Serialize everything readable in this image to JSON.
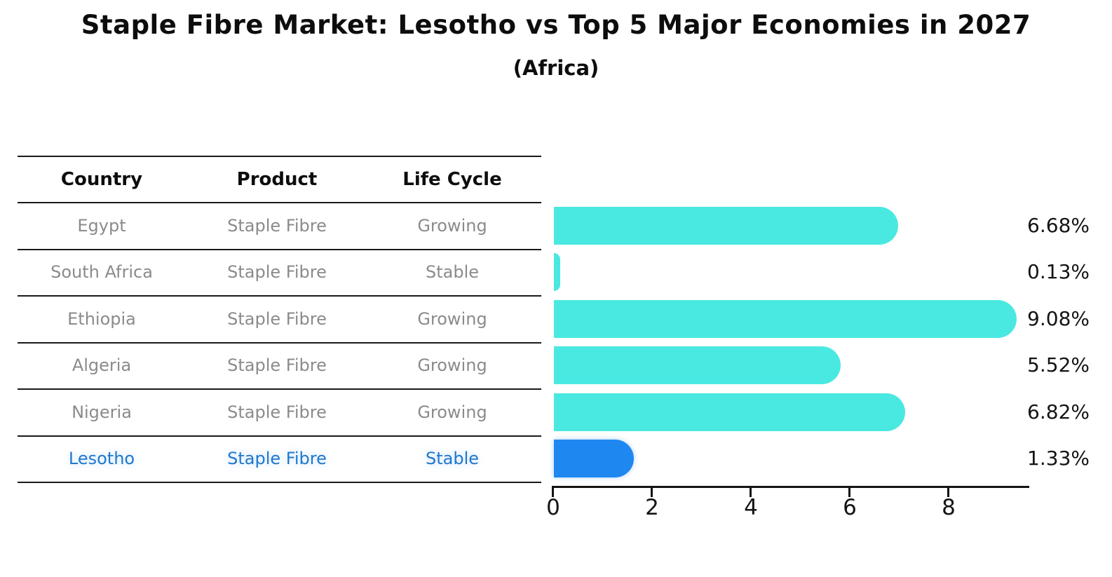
{
  "title": "Staple Fibre Market: Lesotho vs Top 5 Major Economies in 2027",
  "subtitle": "(Africa)",
  "table": {
    "headers": [
      "Country",
      "Product",
      "Life Cycle"
    ],
    "rows": [
      {
        "country": "Egypt",
        "product": "Staple Fibre",
        "life_cycle": "Growing",
        "highlight": false
      },
      {
        "country": "South Africa",
        "product": "Staple Fibre",
        "life_cycle": "Stable",
        "highlight": false
      },
      {
        "country": "Ethiopia",
        "product": "Staple Fibre",
        "life_cycle": "Growing",
        "highlight": false
      },
      {
        "country": "Algeria",
        "product": "Staple Fibre",
        "life_cycle": "Growing",
        "highlight": false
      },
      {
        "country": "Nigeria",
        "product": "Staple Fibre",
        "life_cycle": "Growing",
        "highlight": false
      },
      {
        "country": "Lesotho",
        "product": "Staple Fibre",
        "life_cycle": "Stable",
        "highlight": true
      }
    ]
  },
  "chart_data": {
    "type": "bar",
    "orientation": "horizontal",
    "title": "Staple Fibre Market: Lesotho vs Top 5 Major Economies in 2027",
    "subtitle": "(Africa)",
    "categories": [
      "Egypt",
      "South Africa",
      "Ethiopia",
      "Algeria",
      "Nigeria",
      "Lesotho"
    ],
    "values": [
      6.68,
      0.13,
      9.08,
      5.52,
      6.82,
      1.33
    ],
    "value_labels": [
      "6.68%",
      "0.13%",
      "9.08%",
      "5.52%",
      "6.82%",
      "1.33%"
    ],
    "xlim": [
      0,
      9.6
    ],
    "xticks": [
      "0",
      "2",
      "4",
      "6",
      "8"
    ],
    "grid": false,
    "legend": false,
    "bar_color": "#49e9e1",
    "highlight_color": "#1e87f0",
    "highlight_index": 5
  },
  "colors": {
    "bar": "#49e9e1",
    "highlight_bar": "#1e87f0",
    "highlight_text": "#2178cc",
    "muted_text": "#8b8b8b",
    "text": "#141414",
    "background": "#ffffff"
  }
}
